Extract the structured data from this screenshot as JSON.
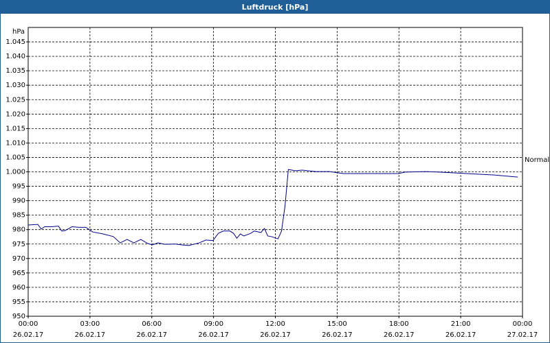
{
  "chart_data": {
    "type": "line",
    "title": "Luftdruck [hPa]",
    "y_label": "hPa",
    "annotation": "Normal",
    "xlim": [
      0,
      24
    ],
    "ylim": [
      950,
      1050
    ],
    "grid": true,
    "xticks": [
      {
        "value": 0,
        "label": "00:00\n26.02.17"
      },
      {
        "value": 3,
        "label": "03:00\n26.02.17"
      },
      {
        "value": 6,
        "label": "06:00\n26.02.17"
      },
      {
        "value": 9,
        "label": "09:00\n26.02.17"
      },
      {
        "value": 12,
        "label": "12:00\n26.02.17"
      },
      {
        "value": 15,
        "label": "15:00\n26.02.17"
      },
      {
        "value": 18,
        "label": "18:00\n26.02.17"
      },
      {
        "value": 21,
        "label": "21:00\n26.02.17"
      },
      {
        "value": 24,
        "label": "00:00\n27.02.17"
      }
    ],
    "yticks": [
      950,
      955,
      960,
      965,
      970,
      975,
      980,
      985,
      990,
      995,
      {
        "value": 1000,
        "label": "1.000"
      },
      {
        "value": 1005,
        "label": "1.005"
      },
      {
        "value": 1010,
        "label": "1.010"
      },
      {
        "value": 1015,
        "label": "1.015"
      },
      {
        "value": 1020,
        "label": "1.020"
      },
      {
        "value": 1025,
        "label": "1.025"
      },
      {
        "value": 1030,
        "label": "1.030"
      },
      {
        "value": 1035,
        "label": "1.035"
      },
      {
        "value": 1040,
        "label": "1.040"
      },
      {
        "value": 1045,
        "label": "1.045"
      }
    ],
    "x": [
      0,
      0.47,
      0.63,
      0.8,
      1.13,
      1.47,
      1.63,
      1.8,
      2.13,
      2.47,
      2.8,
      3.13,
      3.63,
      4.13,
      4.47,
      4.8,
      5.13,
      5.47,
      5.8,
      6.03,
      6.3,
      6.63,
      7.13,
      7.47,
      7.8,
      8.3,
      8.63,
      8.97,
      9.23,
      9.47,
      9.8,
      9.97,
      10.13,
      10.3,
      10.47,
      10.8,
      10.97,
      11.3,
      11.47,
      11.63,
      11.8,
      12.13,
      12.3,
      12.47,
      12.63,
      12.97,
      13.3,
      13.97,
      14.63,
      15.3,
      16.63,
      17.97,
      18.3,
      19.3,
      19.97,
      21.3,
      22.63,
      23.77
    ],
    "series": [
      {
        "color": "#00008b",
        "values": [
          981.6,
          981.8,
          980.2,
          981,
          981,
          981.2,
          979.5,
          979.7,
          981,
          980.8,
          980.8,
          979.2,
          978.5,
          977.6,
          975.4,
          976.6,
          975.4,
          976.6,
          975.2,
          974.7,
          975.4,
          974.9,
          975,
          974.7,
          974.5,
          975.4,
          976.4,
          976.2,
          978.7,
          979.5,
          979.5,
          978.7,
          977,
          978.5,
          977.8,
          978.7,
          979.5,
          979,
          980.4,
          977.8,
          977.6,
          976.8,
          979.5,
          988.2,
          1000.8,
          1000.4,
          1000.6,
          1000.1,
          1000.1,
          999.4,
          999.4,
          999.4,
          999.9,
          1000.1,
          999.9,
          999.4,
          998.9,
          998.2
        ]
      }
    ]
  }
}
